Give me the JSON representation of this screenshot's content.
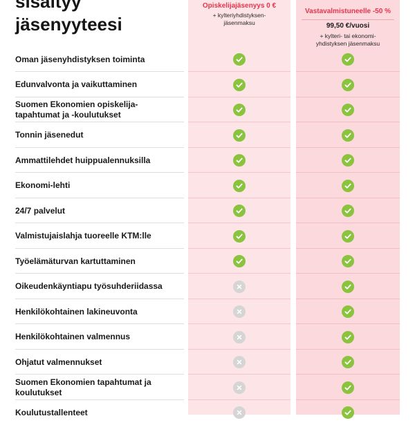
{
  "heading": {
    "line1": "sisältyy",
    "line2": "jäsenyyteesi"
  },
  "plans": [
    {
      "title": "Opiskelijajäsenyys 0 €",
      "price": "",
      "note": "+ kylteriyhdistyksen-\njäsenmaksu"
    },
    {
      "title": "Vastavalmistuneelle -50 %",
      "price": "99,50 €/vuosi",
      "note": "+ kylteri- tai ekonomi-\nyhdistyksen jäsenmaksu"
    }
  ],
  "colors": {
    "accent": "#e8344a",
    "check": "#8ac43f",
    "cross": "#d5d5d5",
    "column_bg": "#fde4e6"
  },
  "icons": {
    "included": "check-icon",
    "not_included": "cross-icon"
  },
  "features": [
    {
      "label": "Oman jäsenyhdistyksen toiminta",
      "student": true,
      "graduate": true
    },
    {
      "label": "Edunvalvonta ja vaikuttaminen",
      "student": true,
      "graduate": true
    },
    {
      "label": "Suomen Ekonomien opiskelija-\ntapahtumat ja -koulutukset",
      "student": true,
      "graduate": true
    },
    {
      "label": "Tonnin jäsenedut",
      "student": true,
      "graduate": true
    },
    {
      "label": "Ammattilehdet huippualennuksilla",
      "student": true,
      "graduate": true
    },
    {
      "label": "Ekonomi-lehti",
      "student": true,
      "graduate": true
    },
    {
      "label": "24/7 palvelut",
      "student": true,
      "graduate": true
    },
    {
      "label": "Valmistujaislahja tuoreelle KTM:lle",
      "student": true,
      "graduate": true
    },
    {
      "label": "Työelämäturvan kartuttaminen",
      "student": true,
      "graduate": true
    },
    {
      "label": "Oikeudenkäyntiapu työsuhderiidassa",
      "student": false,
      "graduate": true
    },
    {
      "label": "Henkilökohtainen lakineuvonta",
      "student": false,
      "graduate": true
    },
    {
      "label": "Henkilökohtainen valmennus",
      "student": false,
      "graduate": true
    },
    {
      "label": "Ohjatut valmennukset",
      "student": false,
      "graduate": true
    },
    {
      "label": "Suomen Ekonomien tapahtumat ja\nkoulutukset",
      "student": false,
      "graduate": true
    },
    {
      "label": "Koulutustallenteet",
      "student": false,
      "graduate": true
    }
  ]
}
